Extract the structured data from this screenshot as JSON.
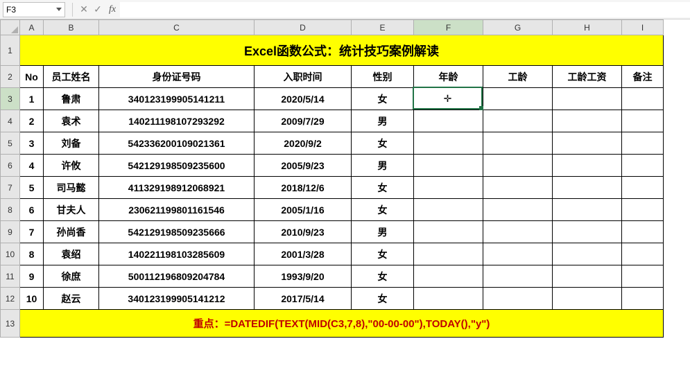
{
  "formula_bar": {
    "cell_ref": "F3",
    "fx_label": "fx",
    "formula_value": ""
  },
  "columns": [
    "A",
    "B",
    "C",
    "D",
    "E",
    "F",
    "G",
    "H",
    "I"
  ],
  "row_numbers": [
    1,
    2,
    3,
    4,
    5,
    6,
    7,
    8,
    9,
    10,
    11,
    12,
    13
  ],
  "active": {
    "col": "F",
    "row": 3
  },
  "title": "Excel函数公式：统计技巧案例解读",
  "headers": {
    "no": "No",
    "name": "员工姓名",
    "id": "身份证号码",
    "hire": "入职时间",
    "sex": "性别",
    "age": "年龄",
    "tenure": "工龄",
    "salary": "工龄工资",
    "note": "备注"
  },
  "rows": [
    {
      "no": 1,
      "name": "鲁肃",
      "id": "340123199905141211",
      "hire": "2020/5/14",
      "sex": "女"
    },
    {
      "no": 2,
      "name": "袁术",
      "id": "140211198107293292",
      "hire": "2009/7/29",
      "sex": "男"
    },
    {
      "no": 3,
      "name": "刘备",
      "id": "542336200109021361",
      "hire": "2020/9/2",
      "sex": "女"
    },
    {
      "no": 4,
      "name": "许攸",
      "id": "542129198509235600",
      "hire": "2005/9/23",
      "sex": "男"
    },
    {
      "no": 5,
      "name": "司马懿",
      "id": "411329198912068921",
      "hire": "2018/12/6",
      "sex": "女"
    },
    {
      "no": 6,
      "name": "甘夫人",
      "id": "230621199801161546",
      "hire": "2005/1/16",
      "sex": "女"
    },
    {
      "no": 7,
      "name": "孙尚香",
      "id": "542129198509235666",
      "hire": "2010/9/23",
      "sex": "男"
    },
    {
      "no": 8,
      "name": "袁绍",
      "id": "140221198103285609",
      "hire": "2001/3/28",
      "sex": "女"
    },
    {
      "no": 9,
      "name": "徐庶",
      "id": "500112196809204784",
      "hire": "1993/9/20",
      "sex": "女"
    },
    {
      "no": 10,
      "name": "赵云",
      "id": "340123199905141212",
      "hire": "2017/5/14",
      "sex": "女"
    }
  ],
  "footer": "重点：=DATEDIF(TEXT(MID(C3,7,8),\"00-00-00\"),TODAY(),\"y\")",
  "cursor_glyph": "✛",
  "colors": {
    "banner_bg": "#ffff00",
    "footer_text": "#c00000",
    "selection_border": "#217346"
  }
}
